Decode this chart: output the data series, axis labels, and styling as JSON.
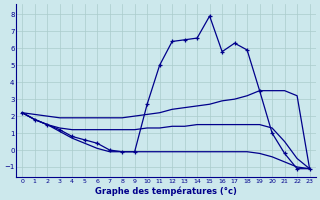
{
  "xlabel": "Graphe des températures (°c)",
  "bg_color": "#cce8ec",
  "line_color": "#00008b",
  "grid_color": "#aacccc",
  "xlim": [
    -0.5,
    23.5
  ],
  "ylim": [
    -1.6,
    8.6
  ],
  "yticks": [
    -1,
    0,
    1,
    2,
    3,
    4,
    5,
    6,
    7,
    8
  ],
  "xticks": [
    0,
    1,
    2,
    3,
    4,
    5,
    6,
    7,
    8,
    9,
    10,
    11,
    12,
    13,
    14,
    15,
    16,
    17,
    18,
    19,
    20,
    21,
    22,
    23
  ],
  "lines": [
    {
      "x": [
        0,
        1,
        2,
        3,
        4,
        5,
        6,
        7,
        8,
        9,
        10,
        11,
        12,
        13,
        14,
        15,
        16,
        17,
        18,
        19,
        20,
        21,
        22,
        23
      ],
      "y": [
        2.2,
        1.8,
        1.5,
        1.2,
        0.8,
        0.6,
        0.4,
        0.0,
        -0.1,
        -0.1,
        2.7,
        5.0,
        6.4,
        6.5,
        6.6,
        7.9,
        5.8,
        6.3,
        5.9,
        3.5,
        1.0,
        -0.2,
        -1.1,
        -1.1
      ],
      "marker": true
    },
    {
      "x": [
        0,
        1,
        2,
        3,
        4,
        5,
        6,
        7,
        8,
        9,
        10,
        11,
        12,
        13,
        14,
        15,
        16,
        17,
        18,
        19,
        20,
        21,
        22,
        23
      ],
      "y": [
        2.2,
        2.1,
        2.0,
        1.9,
        1.9,
        1.9,
        1.9,
        1.9,
        1.9,
        2.0,
        2.1,
        2.2,
        2.4,
        2.5,
        2.6,
        2.7,
        2.9,
        3.0,
        3.2,
        3.5,
        3.5,
        3.5,
        3.2,
        -1.1
      ],
      "marker": false
    },
    {
      "x": [
        0,
        1,
        2,
        3,
        4,
        5,
        6,
        7,
        8,
        9,
        10,
        11,
        12,
        13,
        14,
        15,
        16,
        17,
        18,
        19,
        20,
        21,
        22,
        23
      ],
      "y": [
        2.2,
        1.8,
        1.5,
        1.3,
        1.2,
        1.2,
        1.2,
        1.2,
        1.2,
        1.2,
        1.3,
        1.3,
        1.4,
        1.4,
        1.5,
        1.5,
        1.5,
        1.5,
        1.5,
        1.5,
        1.3,
        0.5,
        -0.5,
        -1.1
      ],
      "marker": false
    },
    {
      "x": [
        0,
        1,
        2,
        3,
        4,
        5,
        6,
        7,
        8,
        9,
        10,
        11,
        12,
        13,
        14,
        15,
        16,
        17,
        18,
        19,
        20,
        21,
        22,
        23
      ],
      "y": [
        2.2,
        1.8,
        1.5,
        1.1,
        0.7,
        0.4,
        0.1,
        -0.1,
        -0.1,
        -0.1,
        -0.1,
        -0.1,
        -0.1,
        -0.1,
        -0.1,
        -0.1,
        -0.1,
        -0.1,
        -0.1,
        -0.2,
        -0.4,
        -0.7,
        -1.0,
        -1.1
      ],
      "marker": false
    }
  ]
}
